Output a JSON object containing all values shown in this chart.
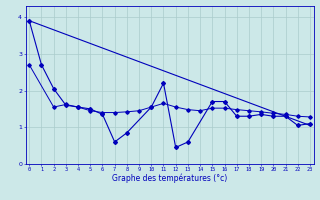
{
  "xlabel": "Graphe des températures (°c)",
  "background_color": "#cce8e8",
  "grid_color": "#aacccc",
  "line_color": "#0000bb",
  "x_ticks": [
    0,
    1,
    2,
    3,
    4,
    5,
    6,
    7,
    8,
    9,
    10,
    11,
    12,
    13,
    14,
    15,
    16,
    17,
    18,
    19,
    20,
    21,
    22,
    23
  ],
  "ylim": [
    0,
    4.3
  ],
  "xlim": [
    -0.3,
    23.3
  ],
  "trend_x": [
    0,
    23
  ],
  "trend_y": [
    3.9,
    1.05
  ],
  "mid_x": [
    0,
    2,
    3,
    4,
    5,
    6,
    7,
    8,
    9,
    10,
    11,
    12,
    13,
    14,
    15,
    16,
    17,
    18,
    19,
    20,
    21,
    22,
    23
  ],
  "mid_y": [
    2.7,
    1.55,
    1.62,
    1.55,
    1.45,
    1.4,
    1.4,
    1.42,
    1.45,
    1.55,
    1.65,
    1.55,
    1.48,
    1.45,
    1.52,
    1.52,
    1.48,
    1.45,
    1.42,
    1.38,
    1.35,
    1.3,
    1.28
  ],
  "jagged_x": [
    0,
    1,
    2,
    3,
    4,
    5,
    6,
    7,
    8,
    10,
    11,
    12,
    13,
    15,
    16,
    17,
    18,
    19,
    20,
    21,
    22,
    23
  ],
  "jagged_y": [
    3.9,
    2.7,
    2.05,
    1.6,
    1.55,
    1.5,
    1.35,
    0.6,
    0.85,
    1.55,
    2.2,
    0.45,
    0.6,
    1.7,
    1.7,
    1.3,
    1.3,
    1.35,
    1.3,
    1.3,
    1.05,
    1.1
  ]
}
